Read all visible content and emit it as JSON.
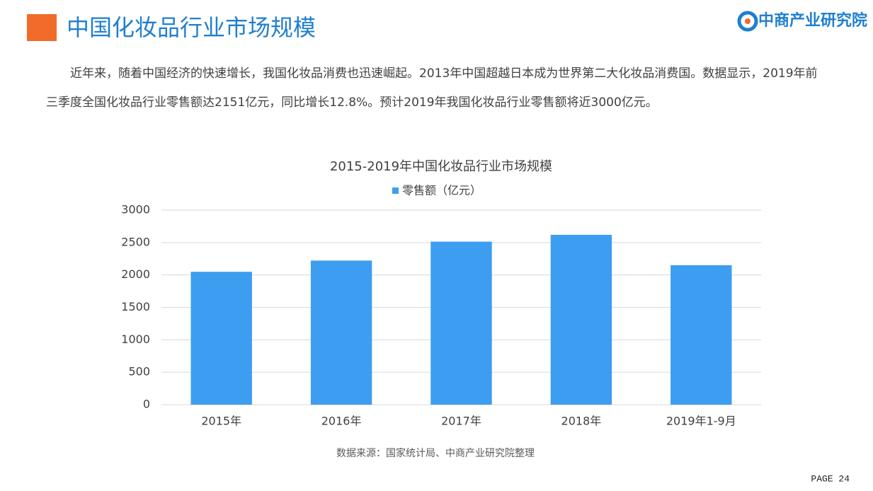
{
  "header": {
    "title": "中国化妆品行业市场规模",
    "logo": "中商产业研究院"
  },
  "paragraph": "近年来，随着中国经济的快速增长，我国化妆品消费也迅速崛起。2013年中国超越日本成为世界第二大化妆品消费国。数据显示，2019年前三季度全国化妆品行业零售额达2151亿元，同比增长12.8%。预计2019年我国化妆品行业零售额将近3000亿元。",
  "chart_data": {
    "type": "bar",
    "title": "2015-2019年中国化妆品行业市场规模",
    "categories": [
      "2015年",
      "2016年",
      "2017年",
      "2018年",
      "2019年1-9月"
    ],
    "series": [
      {
        "name": "零售额（亿元）",
        "color": "#3d9df0",
        "values": [
          2049,
          2222,
          2514,
          2619,
          2151
        ]
      }
    ],
    "ylim": [
      0,
      3000
    ],
    "yticks": [
      0,
      500,
      1000,
      1500,
      2000,
      2500,
      3000
    ],
    "grid": true,
    "legend": "top"
  },
  "source": "数据来源：国家统计局、中商产业研究院整理",
  "page": "PAGE 24"
}
